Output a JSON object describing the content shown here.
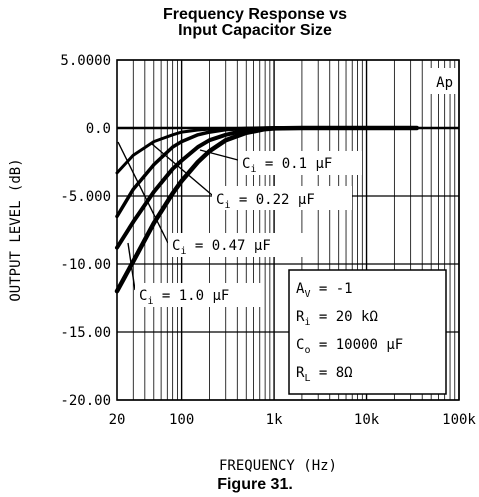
{
  "chart_data": {
    "type": "line",
    "title_line1": "Frequency Response vs",
    "title_line2": "Input Capacitor Size",
    "xlabel": "FREQUENCY (Hz)",
    "ylabel": "OUTPUT LEVEL (dB)",
    "x_scale": "log",
    "xlim": [
      20,
      100000
    ],
    "ylim": [
      -20,
      5
    ],
    "x_ticks": [
      20,
      100,
      1000,
      10000,
      100000
    ],
    "x_tick_labels": [
      "20",
      "100",
      "1k",
      "10k",
      "100k"
    ],
    "y_ticks": [
      5,
      0,
      -5,
      -10,
      -15,
      -20
    ],
    "y_tick_labels": [
      "5.0000",
      "0.0",
      "-5.000",
      "-10.00",
      "-15.00",
      "-20.00"
    ],
    "grid": true,
    "corner_label": "Ap",
    "series": [
      {
        "name": "Ci = 0.1 μF",
        "x": [
          20,
          30,
          50,
          80,
          100,
          150,
          200,
          300,
          500,
          800,
          1000,
          2000,
          5000,
          10000,
          20000,
          35000
        ],
        "y": [
          -3.3,
          -2.0,
          -1.0,
          -0.5,
          -0.3,
          -0.15,
          -0.08,
          -0.05,
          -0.02,
          0,
          0,
          0,
          0,
          0,
          0,
          0
        ]
      },
      {
        "name": "Ci = 0.22 μF",
        "x": [
          20,
          30,
          50,
          80,
          100,
          150,
          200,
          300,
          500,
          800,
          1000,
          2000,
          5000,
          10000,
          20000,
          35000
        ],
        "y": [
          -6.5,
          -4.5,
          -2.7,
          -1.4,
          -1.0,
          -0.5,
          -0.3,
          -0.12,
          -0.04,
          0,
          0,
          0,
          0,
          0,
          0,
          0
        ]
      },
      {
        "name": "Ci = 0.47 μF",
        "x": [
          20,
          30,
          50,
          80,
          100,
          150,
          200,
          300,
          500,
          800,
          1000,
          2000,
          5000,
          10000,
          20000,
          35000
        ],
        "y": [
          -8.8,
          -6.9,
          -4.7,
          -3.0,
          -2.4,
          -1.4,
          -0.9,
          -0.5,
          -0.15,
          -0.03,
          0,
          0,
          0,
          0,
          0,
          0
        ]
      },
      {
        "name": "Ci = 1.0 μF",
        "x": [
          20,
          30,
          50,
          80,
          100,
          150,
          200,
          300,
          500,
          800,
          1000,
          2000,
          5000,
          10000,
          20000,
          35000
        ],
        "y": [
          -12.0,
          -9.8,
          -7.0,
          -4.8,
          -3.9,
          -2.5,
          -1.7,
          -0.9,
          -0.35,
          -0.08,
          -0.03,
          0,
          0,
          0,
          0,
          0
        ]
      }
    ],
    "curve_labels": [
      {
        "prefix": "C",
        "sub": "i",
        "rest": " = 0.1 μF"
      },
      {
        "prefix": "C",
        "sub": "i",
        "rest": " = 0.22 μF"
      },
      {
        "prefix": "C",
        "sub": "i",
        "rest": " = 0.47 μF"
      },
      {
        "prefix": "C",
        "sub": "i",
        "rest": " = 1.0 μF"
      }
    ],
    "conditions": [
      {
        "prefix": "A",
        "sub": "V",
        "rest": " = -1"
      },
      {
        "prefix": "R",
        "sub": "i",
        "rest": " = 20 kΩ"
      },
      {
        "prefix": "C",
        "sub": "o",
        "rest": " = 10000 μF"
      },
      {
        "prefix": "R",
        "sub": "L",
        "rest": " = 8Ω"
      }
    ]
  },
  "figure_caption": "Figure 31."
}
